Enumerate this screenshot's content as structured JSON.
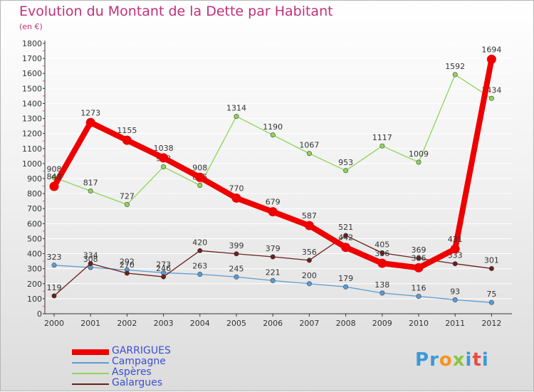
{
  "title": "Evolution du Montant de la Dette par Habitant",
  "unit_label": "(en €)",
  "logo": [
    "P",
    "r",
    "o",
    "x",
    "i",
    "t",
    "i"
  ],
  "logo_colors": [
    "#3a9ad9",
    "#3a9ad9",
    "#f7941d",
    "#8cc63f",
    "#3a9ad9",
    "#e84c3d",
    "#3a9ad9"
  ],
  "chart_data": {
    "type": "line",
    "x": [
      "2000",
      "2001",
      "2002",
      "2003",
      "2004",
      "2005",
      "2006",
      "2007",
      "2008",
      "2009",
      "2010",
      "2011",
      "2012"
    ],
    "ylim": [
      0,
      1800
    ],
    "yticks": [
      0,
      100,
      200,
      300,
      400,
      500,
      600,
      700,
      800,
      900,
      1000,
      1100,
      1200,
      1300,
      1400,
      1500,
      1600,
      1700,
      1800
    ],
    "legend_position": "bottom-left",
    "series": [
      {
        "name": "Campagne",
        "color": "#5b9bd5",
        "values": [
          323,
          308,
          292,
          273,
          263,
          245,
          221,
          200,
          179,
          138,
          116,
          93,
          75
        ]
      },
      {
        "name": "Aspères",
        "color": "#8fd45a",
        "values": [
          908,
          817,
          727,
          978,
          855,
          1314,
          1190,
          1067,
          953,
          1117,
          1009,
          1592,
          1434
        ]
      },
      {
        "name": "Galargues",
        "color": "#6b1e1e",
        "values": [
          119,
          334,
          270,
          246,
          420,
          399,
          379,
          356,
          521,
          405,
          369,
          333,
          301
        ]
      },
      {
        "name": "GARRIGUES",
        "color": "#ee0000",
        "values": [
          848,
          1273,
          1155,
          1038,
          908,
          770,
          679,
          587,
          442,
          336,
          306,
          431,
          1694
        ]
      }
    ]
  },
  "legend": [
    {
      "label": "GARRIGUES",
      "color": "#ee0000"
    },
    {
      "label": "Campagne",
      "color": "#5b9bd5"
    },
    {
      "label": "Aspères",
      "color": "#8fd45a"
    },
    {
      "label": "Galargues",
      "color": "#6b1e1e"
    }
  ]
}
